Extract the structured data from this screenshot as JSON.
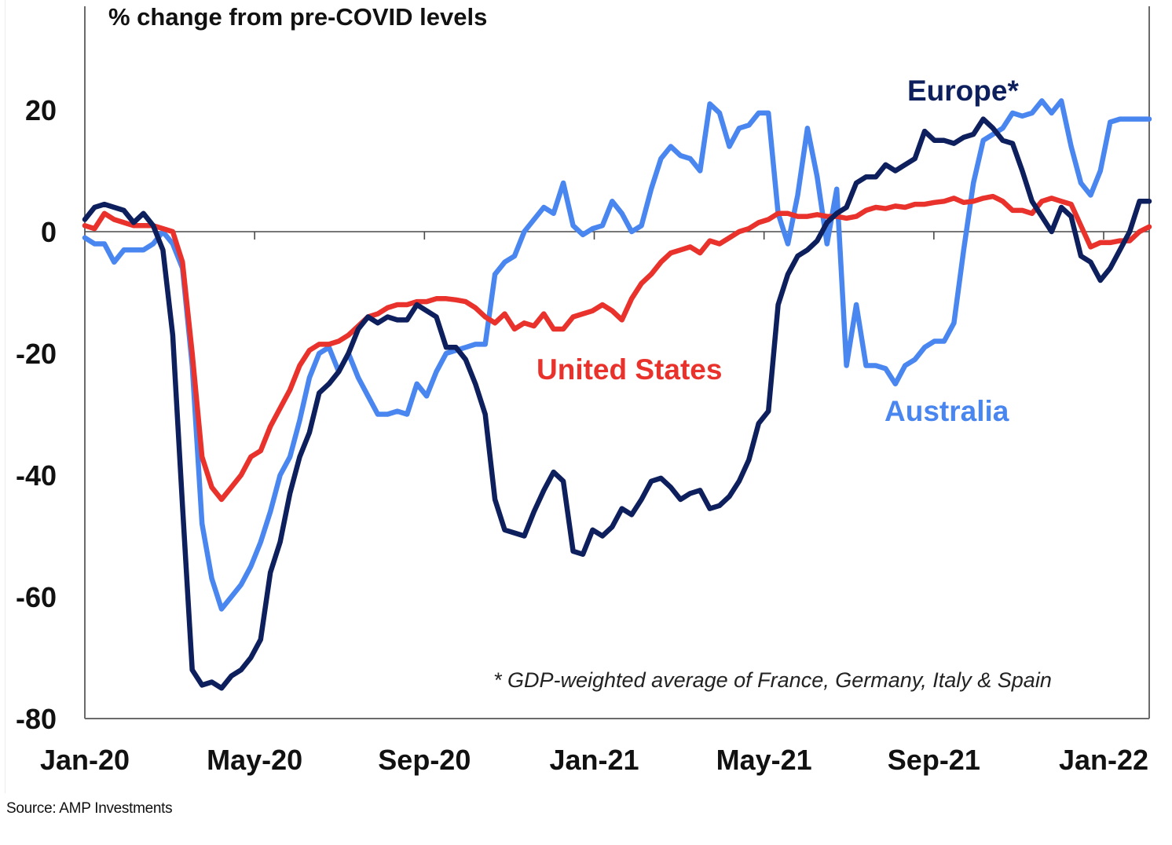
{
  "chart_data": {
    "type": "line",
    "title": "% change from pre-COVID levels",
    "xlabel": "",
    "ylabel": "% change from pre-COVID levels",
    "ylim": [
      -80,
      30
    ],
    "yticks": [
      20,
      0,
      -20,
      -40,
      -60,
      -80
    ],
    "ytick_labels": [
      "20",
      "0",
      "-20",
      "-40",
      "-60",
      "-80"
    ],
    "xtick_labels": [
      "Jan-20",
      "May-20",
      "Sep-20",
      "Jan-21",
      "May-21",
      "Sep-21",
      "Jan-22"
    ],
    "x_unit": "weeks since start of Jan-20",
    "xlim": [
      0,
      109
    ],
    "grid": false,
    "zero_line": true,
    "annotation": "* GDP-weighted average of France, Germany, Italy & Spain",
    "series": [
      {
        "name": "United States",
        "label": "United States",
        "color": "#e8322b",
        "x": [
          0,
          1,
          2,
          3,
          4,
          5,
          6,
          7,
          8,
          9,
          10,
          11,
          12,
          13,
          14,
          15,
          16,
          17,
          18,
          19,
          20,
          21,
          22,
          23,
          24,
          25,
          26,
          27,
          28,
          29,
          30,
          31,
          32,
          33,
          34,
          35,
          36,
          37,
          38,
          39,
          40,
          41,
          42,
          43,
          44,
          45,
          46,
          47,
          48,
          49,
          50,
          51,
          52,
          53,
          54,
          55,
          56,
          57,
          58,
          59,
          60,
          61,
          62,
          63,
          64,
          65,
          66,
          67,
          68,
          69,
          70,
          71,
          72,
          73,
          74,
          75,
          76,
          77,
          78,
          79,
          80,
          81,
          82,
          83,
          84,
          85,
          86,
          87,
          88,
          89,
          90,
          91,
          92,
          93,
          94,
          95,
          96,
          97,
          98,
          99,
          100,
          101,
          102,
          103,
          104,
          105,
          106,
          107,
          108,
          109
        ],
        "values": [
          1,
          0.5,
          3,
          2,
          1.5,
          1,
          1,
          1,
          0.5,
          0,
          -5,
          -20,
          -37,
          -42,
          -44,
          -42,
          -40,
          -37,
          -36,
          -32,
          -29,
          -26,
          -22,
          -19.5,
          -18.5,
          -18.5,
          -18,
          -17,
          -15.5,
          -14,
          -13.5,
          -12.5,
          -12,
          -12,
          -11.5,
          -11.5,
          -11,
          -11,
          -11.2,
          -11.5,
          -12.5,
          -14,
          -15,
          -13.5,
          -16,
          -15,
          -15.5,
          -13.5,
          -16,
          -16,
          -14,
          -13.5,
          -13,
          -12,
          -13,
          -14.5,
          -11,
          -8.5,
          -7,
          -5,
          -3.5,
          -3,
          -2.5,
          -3.5,
          -1.5,
          -2,
          -1,
          0,
          0.5,
          1.5,
          2,
          3,
          3,
          2.5,
          2.5,
          2.8,
          2.5,
          2.5,
          2.2,
          2.5,
          3.5,
          4,
          3.8,
          4.2,
          4,
          4.5,
          4.5,
          4.8,
          5,
          5.5,
          4.8,
          5,
          5.5,
          5.8,
          5,
          3.5,
          3.5,
          3,
          5,
          5.5,
          5,
          4.5,
          1,
          -2.5,
          -1.8,
          -1.8,
          -1.5,
          -1.5,
          0,
          0.8
        ],
        "data_label_anchor": "mid-2020s trough near -44 (Apr/May-20)"
      },
      {
        "name": "Australia",
        "label": "Australia",
        "color": "#4a86f0",
        "x": [
          0,
          1,
          2,
          3,
          4,
          5,
          6,
          7,
          8,
          9,
          10,
          11,
          12,
          13,
          14,
          15,
          16,
          17,
          18,
          19,
          20,
          21,
          22,
          23,
          24,
          25,
          26,
          27,
          28,
          29,
          30,
          31,
          32,
          33,
          34,
          35,
          36,
          37,
          38,
          39,
          40,
          41,
          42,
          43,
          44,
          45,
          46,
          47,
          48,
          49,
          50,
          51,
          52,
          53,
          54,
          55,
          56,
          57,
          58,
          59,
          60,
          61,
          62,
          63,
          64,
          65,
          66,
          67,
          68,
          69,
          70,
          71,
          72,
          73,
          74,
          75,
          76,
          77,
          78,
          79,
          80,
          81,
          82,
          83,
          84,
          85,
          86,
          87,
          88,
          89,
          90,
          91,
          92,
          93,
          94,
          95,
          96,
          97,
          98,
          99,
          100,
          101,
          102,
          103,
          104,
          105,
          106,
          107,
          108,
          109
        ],
        "values": [
          -1,
          -2,
          -2,
          -5,
          -3,
          -3,
          -3,
          -2,
          0,
          -2,
          -6,
          -22,
          -48,
          -57,
          -62,
          -60,
          -58,
          -55,
          -51,
          -46,
          -40,
          -37,
          -31,
          -24,
          -20,
          -19,
          -23,
          -20,
          -24,
          -27,
          -30,
          -30,
          -29.5,
          -30,
          -25,
          -27,
          -23,
          -20,
          -19.5,
          -19,
          -18.5,
          -18.5,
          -7,
          -5,
          -4,
          0,
          2,
          4,
          3,
          8,
          1,
          -0.5,
          0.5,
          1,
          5,
          3,
          0,
          1,
          7,
          12,
          14,
          12.5,
          12,
          10,
          21,
          19.5,
          14,
          17,
          17.5,
          19.5,
          19.5,
          3,
          -2,
          6,
          17,
          9,
          -2,
          7,
          -22,
          -12,
          -22,
          -22,
          -22.5,
          -25,
          -22,
          -21,
          -19,
          -18,
          -18,
          -15,
          -3,
          8,
          15,
          16,
          17,
          19.5,
          19,
          19.5,
          21.5,
          19.5,
          21.5,
          14,
          8,
          6,
          10,
          18,
          18.5,
          18.5,
          18.5,
          18.5
        ],
        "data_label_anchor": "Sep-21 trough near -25"
      },
      {
        "name": "Europe*",
        "label": "Europe*",
        "color": "#0d1f5c",
        "x": [
          0,
          1,
          2,
          3,
          4,
          5,
          6,
          7,
          8,
          9,
          10,
          11,
          12,
          13,
          14,
          15,
          16,
          17,
          18,
          19,
          20,
          21,
          22,
          23,
          24,
          25,
          26,
          27,
          28,
          29,
          30,
          31,
          32,
          33,
          34,
          35,
          36,
          37,
          38,
          39,
          40,
          41,
          42,
          43,
          44,
          45,
          46,
          47,
          48,
          49,
          50,
          51,
          52,
          53,
          54,
          55,
          56,
          57,
          58,
          59,
          60,
          61,
          62,
          63,
          64,
          65,
          66,
          67,
          68,
          69,
          70,
          71,
          72,
          73,
          74,
          75,
          76,
          77,
          78,
          79,
          80,
          81,
          82,
          83,
          84,
          85,
          86,
          87,
          88,
          89,
          90,
          91,
          92,
          93,
          94,
          95,
          96,
          97,
          98,
          99,
          100,
          101,
          102,
          103,
          104,
          105,
          106,
          107,
          108,
          109
        ],
        "values": [
          2,
          4,
          4.5,
          4,
          3.5,
          1.5,
          3,
          1,
          -3,
          -17,
          -45,
          -72,
          -74.5,
          -74,
          -75,
          -73,
          -72,
          -70,
          -67,
          -56,
          -51,
          -43,
          -37,
          -33,
          -26.5,
          -25,
          -23,
          -20,
          -16,
          -14,
          -15,
          -14,
          -14.5,
          -14.5,
          -12,
          -13,
          -14,
          -19,
          -19,
          -21,
          -25,
          -30,
          -44,
          -49,
          -49.5,
          -50,
          -46,
          -42.5,
          -39.5,
          -41,
          -52.5,
          -53,
          -49,
          -50,
          -48.5,
          -45.5,
          -46.5,
          -44,
          -41,
          -40.5,
          -42,
          -44,
          -43,
          -42.5,
          -45.5,
          -45,
          -43.5,
          -41,
          -37.5,
          -31.5,
          -29.5,
          -12,
          -7,
          -4,
          -3,
          -1.5,
          1.5,
          3,
          4,
          8,
          9,
          9,
          11,
          10,
          11,
          12,
          16.5,
          15,
          15,
          14.5,
          15.5,
          16,
          18.5,
          17,
          15,
          14.5,
          10,
          5,
          2.5,
          0,
          4,
          2.5,
          -4,
          -5,
          -8,
          -6,
          -3,
          0,
          5,
          5
        ],
        "data_label_anchor": "Apr-20 trough near -75"
      }
    ],
    "series_label_positions": [
      {
        "series": "United States",
        "near": "center, below zero line (~Nov-20)"
      },
      {
        "series": "Australia",
        "near": "right-center, below United States (~Sep-21)"
      },
      {
        "series": "Europe*",
        "near": "top-right (~Sep-21)"
      }
    ]
  },
  "footer": {
    "source": "Source: AMP Investments"
  }
}
